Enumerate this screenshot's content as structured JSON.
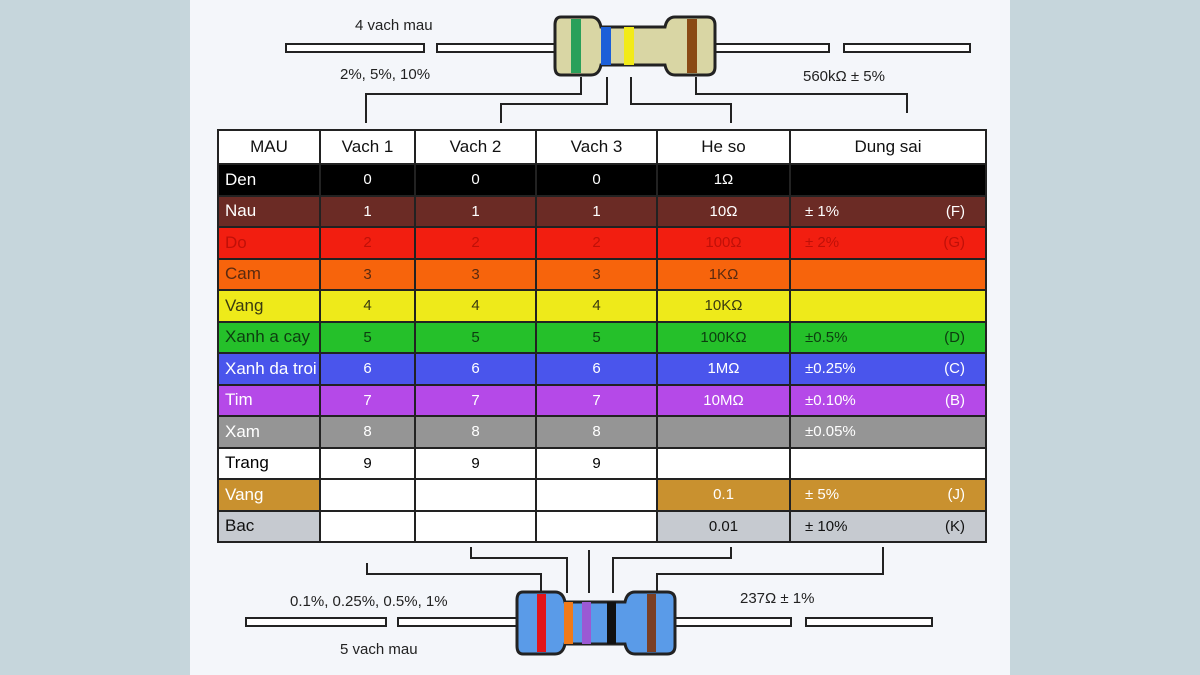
{
  "top": {
    "title": "4 vach mau",
    "tolerance_note": "2%, 5%, 10%",
    "value_note": "560kΩ ± 5%"
  },
  "bottom": {
    "title": "5 vach mau",
    "tolerance_note": "0.1%, 0.25%, 0.5%, 1%",
    "value_note": "237Ω ± 1%"
  },
  "table": {
    "headers": [
      "MAU",
      "Vach 1",
      "Vach 2",
      "Vach 3",
      "He so",
      "Dung sai"
    ],
    "rows": [
      {
        "name": "Den",
        "v1": "0",
        "v2": "0",
        "v3": "0",
        "mult": "1Ω",
        "tol": "",
        "code": "",
        "bg": "#000000",
        "fg": "#ffffff"
      },
      {
        "name": "Nau",
        "v1": "1",
        "v2": "1",
        "v3": "1",
        "mult": "10Ω",
        "tol": "±   1%",
        "code": "(F)",
        "bg": "#6b2b25",
        "fg": "#ffffff"
      },
      {
        "name": "Do",
        "v1": "2",
        "v2": "2",
        "v3": "2",
        "mult": "100Ω",
        "tol": "±   2%",
        "code": "(G)",
        "bg": "#f21e10",
        "fg": "#c01008"
      },
      {
        "name": "Cam",
        "v1": "3",
        "v2": "3",
        "v3": "3",
        "mult": "1KΩ",
        "tol": "",
        "code": "",
        "bg": "#f7640c",
        "fg": "#5a2a10"
      },
      {
        "name": "Vang",
        "v1": "4",
        "v2": "4",
        "v3": "4",
        "mult": "10KΩ",
        "tol": "",
        "code": "",
        "bg": "#eeea1a",
        "fg": "#3a3a10"
      },
      {
        "name": "Xanh  a cay",
        "v1": "5",
        "v2": "5",
        "v3": "5",
        "mult": "100KΩ",
        "tol": "±0.5%",
        "code": "(D)",
        "bg": "#25c02a",
        "fg": "#0d3d10"
      },
      {
        "name": "Xanh da troi",
        "v1": "6",
        "v2": "6",
        "v3": "6",
        "mult": "1MΩ",
        "tol": "±0.25%",
        "code": "(C)",
        "bg": "#4a55ec",
        "fg": "#ffffff"
      },
      {
        "name": "Tim",
        "v1": "7",
        "v2": "7",
        "v3": "7",
        "mult": "10MΩ",
        "tol": "±0.10%",
        "code": "(B)",
        "bg": "#b549e8",
        "fg": "#ffffff"
      },
      {
        "name": "Xam",
        "v1": "8",
        "v2": "8",
        "v3": "8",
        "mult": "",
        "tol": "±0.05%",
        "code": "",
        "bg": "#959595",
        "fg": "#ffffff"
      },
      {
        "name": "Trang",
        "v1": "9",
        "v2": "9",
        "v3": "9",
        "mult": "",
        "tol": "",
        "code": "",
        "bg": "#ffffff",
        "fg": "#000000"
      },
      {
        "name": "Vang",
        "v1": "",
        "v2": "",
        "v3": "",
        "mult": "0.1",
        "tol": "±   5%",
        "code": "(J)",
        "bg": "#c9912f",
        "fg": "#ffffff",
        "partial": true
      },
      {
        "name": "Bac",
        "v1": "",
        "v2": "",
        "v3": "",
        "mult": "0.01",
        "tol": "±  10%",
        "code": "(K)",
        "bg": "#c6cad0",
        "fg": "#111111",
        "partial": true
      }
    ]
  },
  "colors": {
    "resistor_top_body": "#d9d6a4",
    "resistor_bottom_body": "#5a9be8",
    "panel_bg": "#f4f6fa",
    "page_bg": "#c6d6dc"
  }
}
